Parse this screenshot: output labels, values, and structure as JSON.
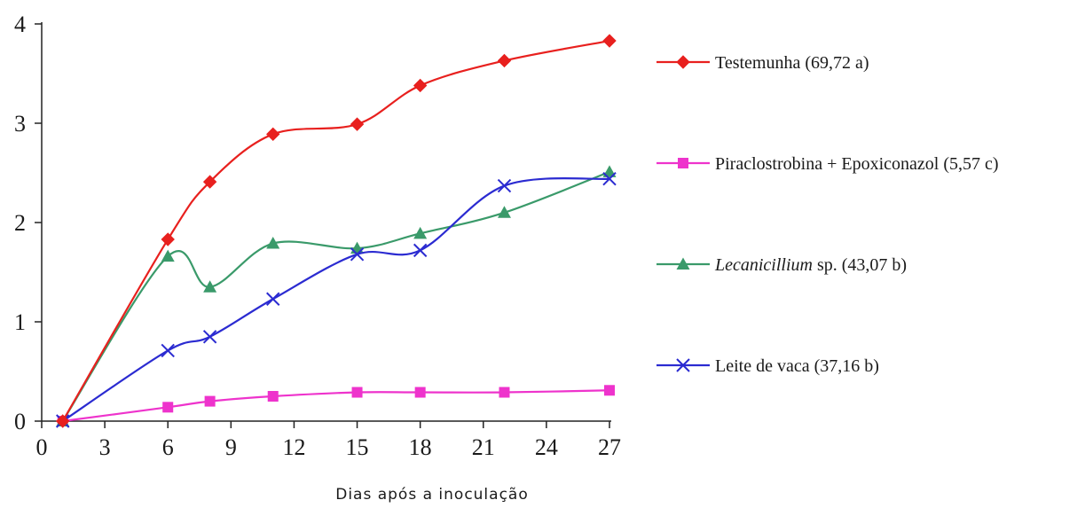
{
  "chart_data": {
    "type": "line",
    "xlabel": "Dias após a inoculação",
    "ylabel": "",
    "xlim": [
      0,
      27
    ],
    "ylim": [
      0,
      4
    ],
    "xticks": [
      "0",
      "3",
      "6",
      "9",
      "12",
      "15",
      "18",
      "21",
      "24",
      "27"
    ],
    "yticks": [
      "0",
      "1",
      "2",
      "3",
      "4"
    ],
    "grid": false,
    "legend_position": "right",
    "series": [
      {
        "name": "Testemunha (69,72 a)",
        "name_parts": [
          {
            "text": "Testemunha (69,72 a)",
            "italic": false
          }
        ],
        "color": "#e8201e",
        "marker": "diamond",
        "x": [
          1,
          6,
          8,
          11,
          15,
          18,
          22,
          27
        ],
        "y": [
          0,
          1.83,
          2.41,
          2.89,
          2.99,
          3.38,
          3.63,
          3.83
        ]
      },
      {
        "name": "Piraclostrobina + Epoxiconazol (5,57 c)",
        "name_parts": [
          {
            "text": "Piraclostrobina + Epoxiconazol (5,57 c)",
            "italic": false
          }
        ],
        "color": "#ee33cc",
        "marker": "square",
        "x": [
          1,
          6,
          8,
          11,
          15,
          18,
          22,
          27
        ],
        "y": [
          0,
          0.14,
          0.2,
          0.25,
          0.29,
          0.29,
          0.29,
          0.31
        ]
      },
      {
        "name": "Lecanicillium sp. (43,07 b)",
        "name_parts": [
          {
            "text": "Lecanicillium",
            "italic": true
          },
          {
            "text": " sp. (43,07 b)",
            "italic": false
          }
        ],
        "color": "#3a9a6a",
        "marker": "triangle",
        "x": [
          1,
          6,
          8,
          11,
          15,
          18,
          22,
          27
        ],
        "y": [
          0,
          1.66,
          1.35,
          1.79,
          1.74,
          1.89,
          2.1,
          2.51
        ]
      },
      {
        "name": "Leite de vaca (37,16 b)",
        "name_parts": [
          {
            "text": "Leite de vaca (37,16 b)",
            "italic": false
          }
        ],
        "color": "#2b2bd1",
        "marker": "x",
        "x": [
          1,
          6,
          8,
          11,
          15,
          18,
          22,
          27
        ],
        "y": [
          0,
          0.71,
          0.85,
          1.23,
          1.68,
          1.72,
          2.37,
          2.44
        ]
      }
    ]
  }
}
